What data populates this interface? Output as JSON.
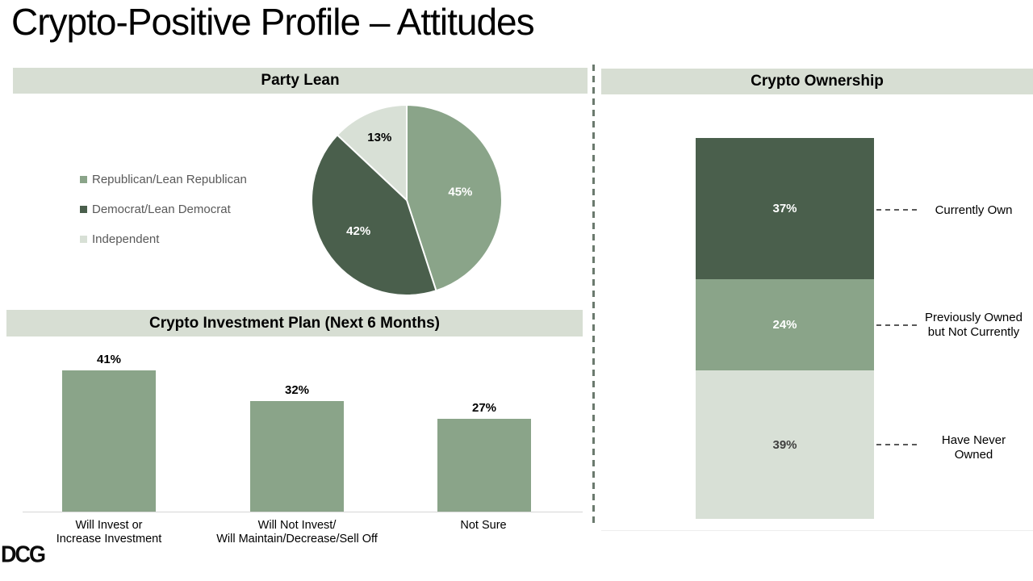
{
  "title": "Crypto-Positive Profile – Attitudes",
  "logo_text": "DCG",
  "colors": {
    "green_medium": "#8aa489",
    "green_dark": "#4a5f4c",
    "green_light": "#d8e0d6",
    "header_bg": "#d7ded3",
    "legend_text": "#595959"
  },
  "chart_data": [
    {
      "id": "party_lean",
      "type": "pie",
      "title": "Party Lean",
      "legend": [
        "Republican/Lean Republican",
        "Democrat/Lean Democrat",
        "Independent"
      ],
      "values": [
        45,
        42,
        13
      ],
      "value_labels": [
        "45%",
        "42%",
        "13%"
      ],
      "slice_colors": [
        "#8aa489",
        "#4a5f4c",
        "#d8e0d6"
      ],
      "slice_label_colors": [
        "#ffffff",
        "#ffffff",
        "#000000"
      ],
      "start_angle": "12-oclock",
      "direction": "clockwise",
      "legend_position": "left"
    },
    {
      "id": "investment_plan",
      "type": "bar",
      "title": "Crypto Investment Plan (Next 6 Months)",
      "categories": [
        "Will Invest or\nIncrease Investment",
        "Will Not Invest/\nWill Maintain/Decrease/Sell Off",
        "Not Sure"
      ],
      "values": [
        41,
        32,
        27
      ],
      "value_labels": [
        "41%",
        "32%",
        "27%"
      ],
      "bar_color": "#8aa489",
      "ylim": [
        0,
        45
      ],
      "grid": false
    },
    {
      "id": "crypto_ownership",
      "type": "stacked-bar",
      "title": "Crypto Ownership",
      "segments": [
        {
          "label": "Currently Own",
          "value": 37,
          "value_label": "37%",
          "color": "#4a5f4c",
          "text_color": "#ffffff"
        },
        {
          "label": "Previously Owned\nbut Not Currently",
          "value": 24,
          "value_label": "24%",
          "color": "#8aa489",
          "text_color": "#ffffff"
        },
        {
          "label": "Have Never\nOwned",
          "value": 39,
          "value_label": "39%",
          "color": "#d8e0d6",
          "text_color": "#3f3f3f"
        }
      ]
    }
  ]
}
